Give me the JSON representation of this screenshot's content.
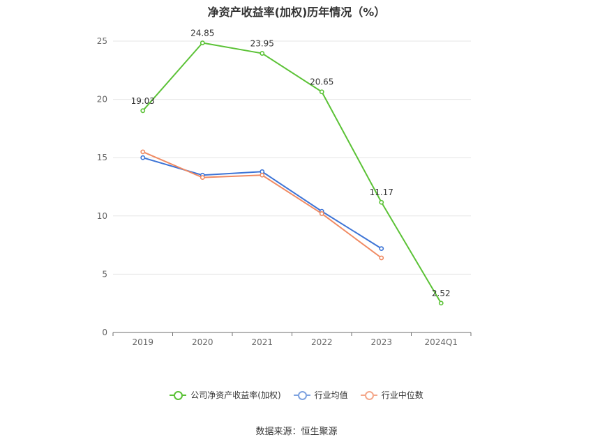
{
  "chart_data": {
    "type": "line",
    "title": "净资产收益率(加权)历年情况（%）",
    "categories": [
      "2019",
      "2020",
      "2021",
      "2022",
      "2023",
      "2024Q1"
    ],
    "ylim": [
      0,
      25
    ],
    "yticks": [
      0,
      5,
      10,
      15,
      20,
      25
    ],
    "grid": true,
    "legend_position": "bottom",
    "series": [
      {
        "name": "公司净资产收益率(加权)",
        "color": "#5bc236",
        "values": [
          19.03,
          24.85,
          23.95,
          20.65,
          11.17,
          2.52
        ],
        "labels": [
          "19.03",
          "24.85",
          "23.95",
          "20.65",
          "11.17",
          "2.52"
        ]
      },
      {
        "name": "行业均值",
        "color": "#3d74d6",
        "values": [
          15.0,
          13.5,
          13.8,
          10.4,
          7.2,
          null
        ]
      },
      {
        "name": "行业中位数",
        "color": "#f08a62",
        "values": [
          15.5,
          13.3,
          13.5,
          10.2,
          6.4,
          null
        ]
      }
    ]
  },
  "legend": {
    "items": [
      {
        "label": "公司净资产收益率(加权)",
        "color": "#5bc236"
      },
      {
        "label": "行业均值",
        "color": "#7fa3e0"
      },
      {
        "label": "行业中位数",
        "color": "#f4a88b"
      }
    ]
  },
  "source": "数据来源：恒生聚源"
}
